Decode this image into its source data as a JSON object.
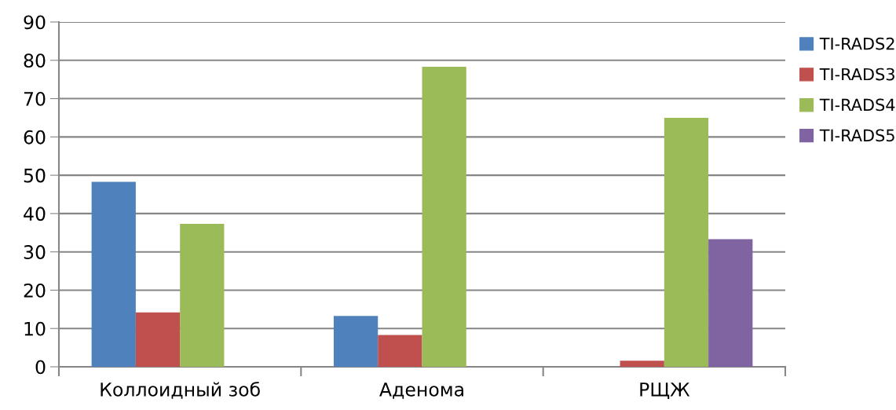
{
  "chart_data": {
    "type": "bar",
    "categories": [
      "Коллоидный зоб",
      "Аденома",
      "РЩЖ"
    ],
    "series": [
      {
        "name": "TI-RADS2",
        "color": "#4f81bd",
        "values": [
          48.3,
          13.3,
          0
        ]
      },
      {
        "name": "TI-RADS3",
        "color": "#c0504d",
        "values": [
          14.2,
          8.3,
          1.6
        ]
      },
      {
        "name": "TI-RADS4",
        "color": "#9bbb59",
        "values": [
          37.3,
          78.3,
          65.0
        ]
      },
      {
        "name": "TI-RADS5",
        "color": "#8064a2",
        "values": [
          0,
          0,
          33.3
        ]
      }
    ],
    "ylim": [
      0,
      90
    ],
    "yticks": [
      0,
      10,
      20,
      30,
      40,
      50,
      60,
      70,
      80,
      90
    ],
    "grid": "y",
    "legend": "right"
  }
}
